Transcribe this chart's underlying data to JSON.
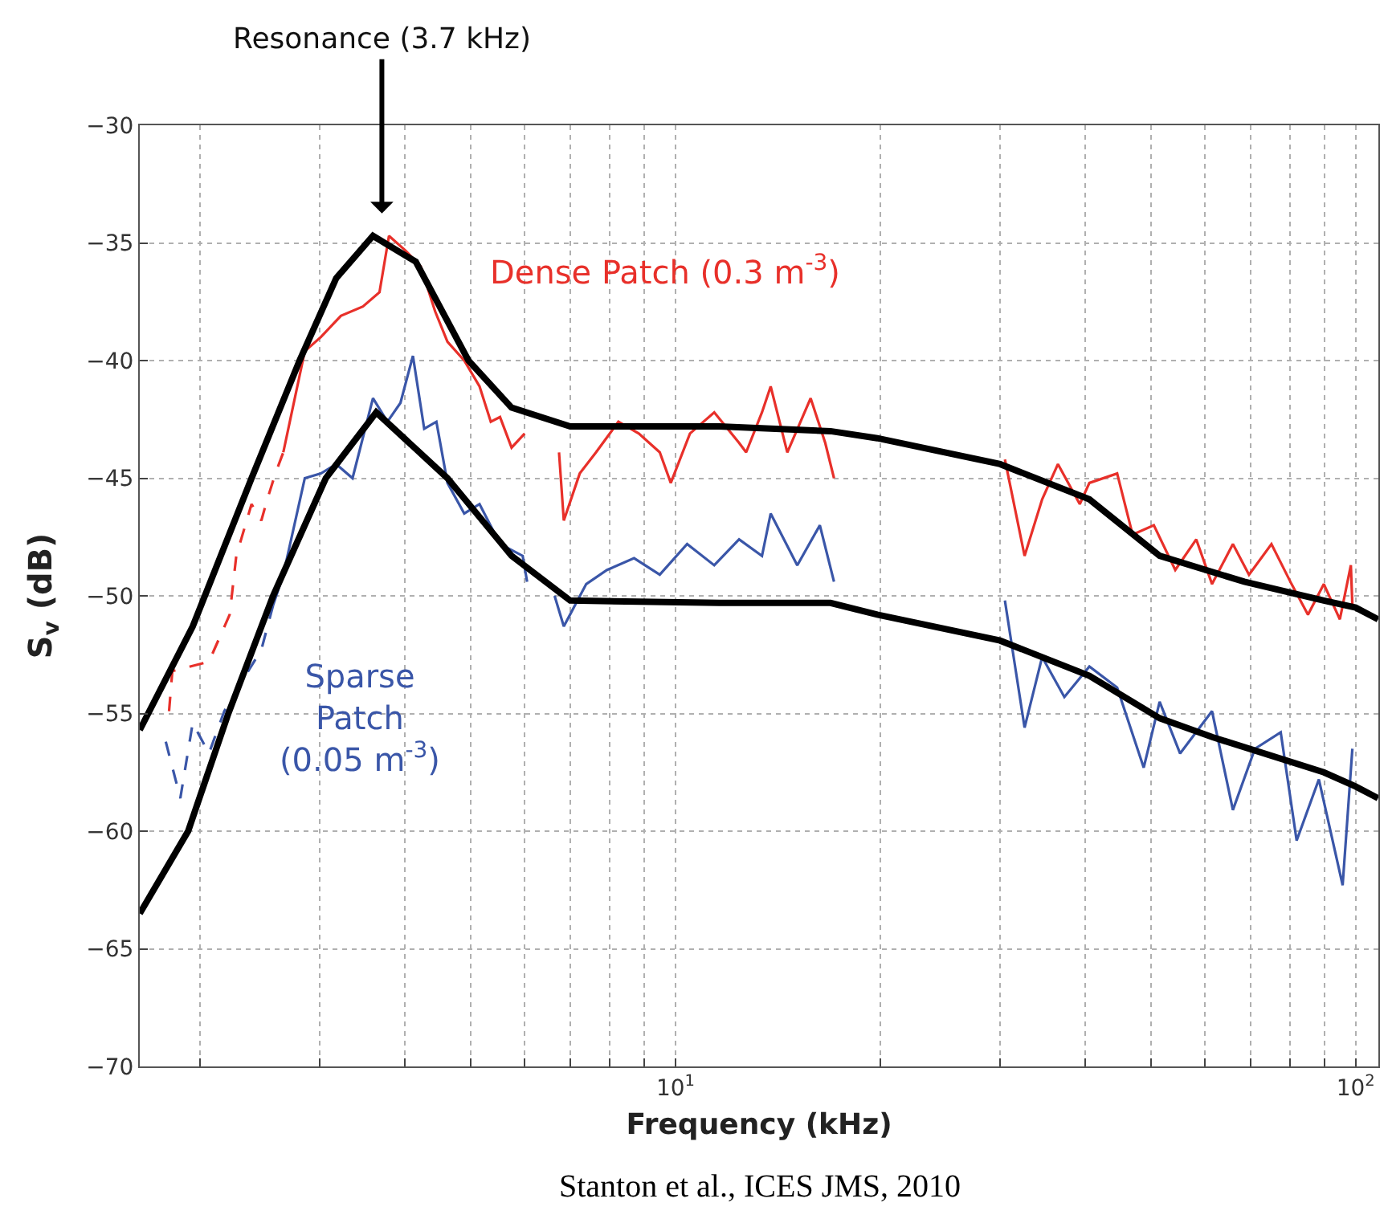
{
  "chart_data": {
    "type": "line",
    "xlabel": "Frequency (kHz)",
    "ylabel": "S$_{v}$ (dB)",
    "log": "x",
    "xlim": [
      1.63,
      108
    ],
    "ylim": [
      -70,
      -30
    ],
    "xticks": [
      {
        "value": 2,
        "label": null
      },
      {
        "value": 3,
        "label": null
      },
      {
        "value": 4,
        "label": null
      },
      {
        "value": 5,
        "label": null
      },
      {
        "value": 6,
        "label": null
      },
      {
        "value": 7,
        "label": null
      },
      {
        "value": 8,
        "label": null
      },
      {
        "value": 9,
        "label": null
      },
      {
        "value": 10,
        "label": "10$^{1}$"
      },
      {
        "value": 20,
        "label": null
      },
      {
        "value": 30,
        "label": null
      },
      {
        "value": 40,
        "label": null
      },
      {
        "value": 50,
        "label": null
      },
      {
        "value": 60,
        "label": null
      },
      {
        "value": 70,
        "label": null
      },
      {
        "value": 80,
        "label": null
      },
      {
        "value": 90,
        "label": null
      },
      {
        "value": 100,
        "label": "10$^{2}$"
      }
    ],
    "yticks": [
      -70,
      -65,
      -60,
      -55,
      -50,
      -45,
      -40,
      -35,
      -30
    ],
    "grid": true,
    "series": [
      {
        "name": "Dense Patch (0.3 m$^{-3}$)",
        "color": "#e8302a",
        "x": [
          2.65,
          2.85,
          3.01,
          3.22,
          3.47,
          3.67,
          3.79,
          4.0,
          4.22,
          4.43,
          4.62,
          4.89,
          5.15,
          5.35,
          5.52,
          5.74,
          6.0,
          6.4,
          6.74,
          6.85,
          7.23,
          7.64,
          8.24,
          8.83,
          9.48,
          9.84,
          10.5,
          11.4,
          12.4,
          12.7,
          13.4,
          13.8,
          14.6,
          15.8,
          16.6,
          17.1,
          25,
          30.5,
          32.6,
          34.6,
          36.5,
          39.3,
          40.6,
          44.6,
          47.0,
          50.5,
          54.3,
          58.3,
          61.5,
          66.0,
          69.7,
          75.2,
          80.5,
          85.1,
          89.8,
          94.8,
          98.4,
          98.9
        ],
        "values": [
          -43.9,
          -39.6,
          -39.0,
          -38.1,
          -37.7,
          -37.1,
          -34.7,
          -35.3,
          -36.0,
          -37.9,
          -39.2,
          -40.0,
          -41.1,
          -42.6,
          -42.4,
          -43.7,
          -43.1,
          null,
          -43.9,
          -46.8,
          -44.8,
          -43.9,
          -42.6,
          -43.1,
          -43.9,
          -45.2,
          -43.1,
          -42.2,
          -43.5,
          -43.9,
          -42.2,
          -41.1,
          -43.9,
          -41.6,
          -43.5,
          -45.0,
          null,
          -44.2,
          -48.3,
          -45.9,
          -44.4,
          -46.1,
          -45.2,
          -44.8,
          -47.4,
          -47.0,
          -48.9,
          -47.6,
          -49.5,
          -47.8,
          -49.1,
          -47.8,
          -49.5,
          -50.8,
          -49.5,
          -51.0,
          -48.7,
          -50.4
        ]
      },
      {
        "color": "#e8302a",
        "line_style": "dashed",
        "x": [
          1.8,
          1.82,
          2.06,
          2.21,
          2.26,
          2.38,
          2.46,
          2.51,
          2.58,
          2.65
        ],
        "values": [
          -54.9,
          -53.2,
          -52.8,
          -50.8,
          -48.3,
          -46.1,
          -46.8,
          -45.9,
          -44.8,
          -43.9
        ]
      },
      {
        "name": "Sparse\nPatch\n(0.05 m$^{-3}$)",
        "color": "#3a56a8",
        "x": [
          2.56,
          2.65,
          2.85,
          3.01,
          3.17,
          3.35,
          3.59,
          3.77,
          3.94,
          4.11,
          4.27,
          4.45,
          4.62,
          4.89,
          5.15,
          5.52,
          5.96,
          6.05,
          6.3,
          6.64,
          6.85,
          7.39,
          7.93,
          8.69,
          9.48,
          10.4,
          11.4,
          12.4,
          13.4,
          13.8,
          15.1,
          16.3,
          17.1,
          25,
          30.5,
          32.6,
          34.6,
          37.3,
          40.6,
          44.6,
          48.8,
          51.5,
          55.2,
          61.5,
          66.0,
          71.1,
          77.6,
          81.9,
          88.3,
          95.7,
          98.9
        ],
        "values": [
          -50.4,
          -49.1,
          -45.0,
          -44.8,
          -44.4,
          -45.0,
          -41.6,
          -42.6,
          -41.8,
          -39.8,
          -42.9,
          -42.6,
          -45.2,
          -46.5,
          -46.1,
          -47.8,
          -48.3,
          -49.4,
          null,
          -50.0,
          -51.3,
          -49.5,
          -48.9,
          -48.4,
          -49.1,
          -47.8,
          -48.7,
          -47.6,
          -48.3,
          -46.5,
          -48.7,
          -47.0,
          -49.4,
          null,
          -50.2,
          -55.6,
          -52.6,
          -54.3,
          -53.0,
          -53.9,
          -57.3,
          -54.5,
          -56.7,
          -54.9,
          -59.1,
          -56.5,
          -55.8,
          -60.4,
          -57.8,
          -62.3,
          -56.5
        ]
      },
      {
        "color": "#3a56a8",
        "line_style": "dashed",
        "x": [
          1.78,
          1.87,
          1.95,
          2.06,
          2.17,
          2.33,
          2.46,
          2.56
        ],
        "values": [
          -56.2,
          -58.6,
          -55.4,
          -56.7,
          -54.9,
          -53.4,
          -52.3,
          -50.4
        ]
      },
      {
        "color": "#000000",
        "x": [
          1.63,
          1.95,
          2.38,
          2.8,
          3.17,
          3.59,
          4.15,
          4.96,
          5.74,
          7.0,
          11.6,
          16.9,
          19.8,
          30.0,
          40.6,
          51.5,
          68.6,
          89.8,
          100,
          107.9
        ],
        "values": [
          -55.7,
          -51.3,
          -45.0,
          -40.0,
          -36.5,
          -34.7,
          -35.8,
          -40.0,
          -42.0,
          -42.8,
          -42.8,
          -43.0,
          -43.3,
          -44.4,
          -45.9,
          -48.3,
          -49.4,
          -50.2,
          -50.5,
          -51.0
        ]
      },
      {
        "color": "#000000",
        "x": [
          1.63,
          1.92,
          2.2,
          2.56,
          3.06,
          3.63,
          4.62,
          5.74,
          7.0,
          11.6,
          16.9,
          19.8,
          30.0,
          40.6,
          51.5,
          61.5,
          89.8,
          100,
          107.9
        ],
        "values": [
          -63.5,
          -60.0,
          -55.0,
          -50.0,
          -45.0,
          -42.2,
          -45.0,
          -48.3,
          -50.2,
          -50.3,
          -50.3,
          -50.8,
          -51.9,
          -53.4,
          -55.2,
          -56.0,
          -57.5,
          -58.1,
          -58.6
        ]
      }
    ],
    "annotations": [
      {
        "text": "Resonance (3.7 kHz)",
        "x": 3.7,
        "y": -34.7
      },
      "Stanton et al., ICES JMS, 2010"
    ]
  }
}
